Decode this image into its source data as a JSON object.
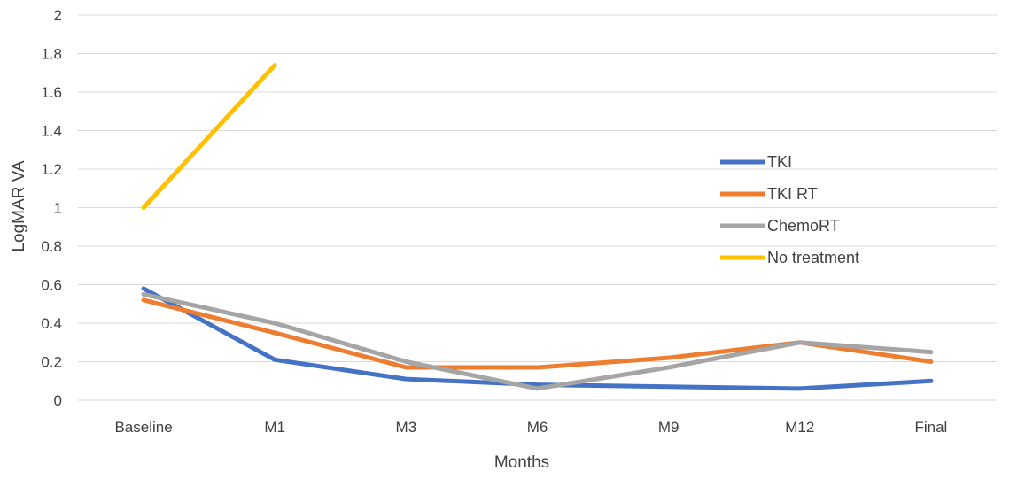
{
  "chart_data": {
    "type": "line",
    "title": "",
    "xlabel": "Months",
    "ylabel": "LogMAR VA",
    "categories": [
      "Baseline",
      "M1",
      "M3",
      "M6",
      "M9",
      "M12",
      "Final"
    ],
    "ylim": [
      0,
      2
    ],
    "yticks": [
      0,
      0.2,
      0.4,
      0.6,
      0.8,
      1,
      1.2,
      1.4,
      1.6,
      1.8,
      2
    ],
    "ytick_labels": [
      "0",
      "0.2",
      "0.4",
      "0.6",
      "0.8",
      "1",
      "1.2",
      "1.4",
      "1.6",
      "1.8",
      "2"
    ],
    "grid": true,
    "legend_position": "right",
    "series": [
      {
        "name": "TKI",
        "color": "#4472C4",
        "values": [
          0.58,
          0.21,
          0.11,
          0.08,
          0.07,
          0.06,
          0.1
        ]
      },
      {
        "name": "TKI RT",
        "color": "#ED7D31",
        "values": [
          0.52,
          0.35,
          0.17,
          0.17,
          0.22,
          0.3,
          0.2
        ]
      },
      {
        "name": "ChemoRT",
        "color": "#A5A5A5",
        "values": [
          0.55,
          0.4,
          0.2,
          0.06,
          0.17,
          0.3,
          0.25
        ]
      },
      {
        "name": "No treatment",
        "color": "#FFC000",
        "values": [
          1.0,
          1.74,
          null,
          null,
          null,
          null,
          null
        ]
      }
    ]
  }
}
